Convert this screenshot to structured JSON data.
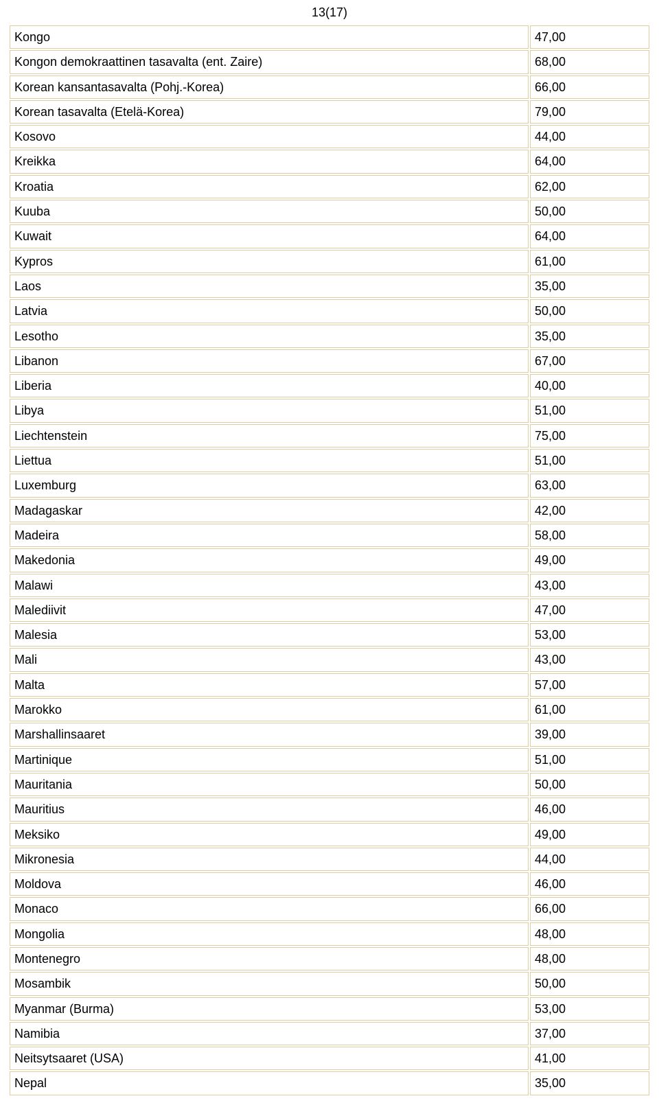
{
  "page_number": "13(17)",
  "table": {
    "border_color": "#dccda2",
    "background_color": "#ffffff",
    "rows": [
      {
        "name": "Kongo",
        "value": "47,00"
      },
      {
        "name": "Kongon demokraattinen tasavalta (ent. Zaire)",
        "value": "68,00"
      },
      {
        "name": "Korean kansantasavalta  (Pohj.-Korea)",
        "value": "66,00"
      },
      {
        "name": "Korean tasavalta (Etelä-Korea)",
        "value": "79,00"
      },
      {
        "name": "Kosovo",
        "value": "44,00"
      },
      {
        "name": "Kreikka",
        "value": "64,00"
      },
      {
        "name": "Kroatia",
        "value": "62,00"
      },
      {
        "name": "Kuuba",
        "value": "50,00"
      },
      {
        "name": "Kuwait",
        "value": "64,00"
      },
      {
        "name": "Kypros",
        "value": "61,00"
      },
      {
        "name": "Laos",
        "value": "35,00"
      },
      {
        "name": "Latvia",
        "value": "50,00"
      },
      {
        "name": "Lesotho",
        "value": "35,00"
      },
      {
        "name": "Libanon",
        "value": "67,00"
      },
      {
        "name": "Liberia",
        "value": "40,00"
      },
      {
        "name": "Libya",
        "value": "51,00"
      },
      {
        "name": "Liechtenstein",
        "value": "75,00"
      },
      {
        "name": "Liettua",
        "value": "51,00"
      },
      {
        "name": "Luxemburg",
        "value": "63,00"
      },
      {
        "name": "Madagaskar",
        "value": "42,00"
      },
      {
        "name": "Madeira",
        "value": "58,00"
      },
      {
        "name": "Makedonia",
        "value": "49,00"
      },
      {
        "name": "Malawi",
        "value": "43,00"
      },
      {
        "name": "Malediivit",
        "value": "47,00"
      },
      {
        "name": "Malesia",
        "value": "53,00"
      },
      {
        "name": "Mali",
        "value": "43,00"
      },
      {
        "name": "Malta",
        "value": "57,00"
      },
      {
        "name": "Marokko",
        "value": "61,00"
      },
      {
        "name": "Marshallinsaaret",
        "value": "39,00"
      },
      {
        "name": "Martinique",
        "value": "51,00"
      },
      {
        "name": "Mauritania",
        "value": "50,00"
      },
      {
        "name": "Mauritius",
        "value": "46,00"
      },
      {
        "name": "Meksiko",
        "value": "49,00"
      },
      {
        "name": "Mikronesia",
        "value": "44,00"
      },
      {
        "name": "Moldova",
        "value": "46,00"
      },
      {
        "name": "Monaco",
        "value": "66,00"
      },
      {
        "name": "Mongolia",
        "value": "48,00"
      },
      {
        "name": "Montenegro",
        "value": "48,00"
      },
      {
        "name": "Mosambik",
        "value": "50,00"
      },
      {
        "name": "Myanmar (Burma)",
        "value": "53,00"
      },
      {
        "name": "Namibia",
        "value": "37,00"
      },
      {
        "name": "Neitsytsaaret (USA)",
        "value": "41,00"
      },
      {
        "name": "Nepal",
        "value": "35,00"
      }
    ]
  }
}
